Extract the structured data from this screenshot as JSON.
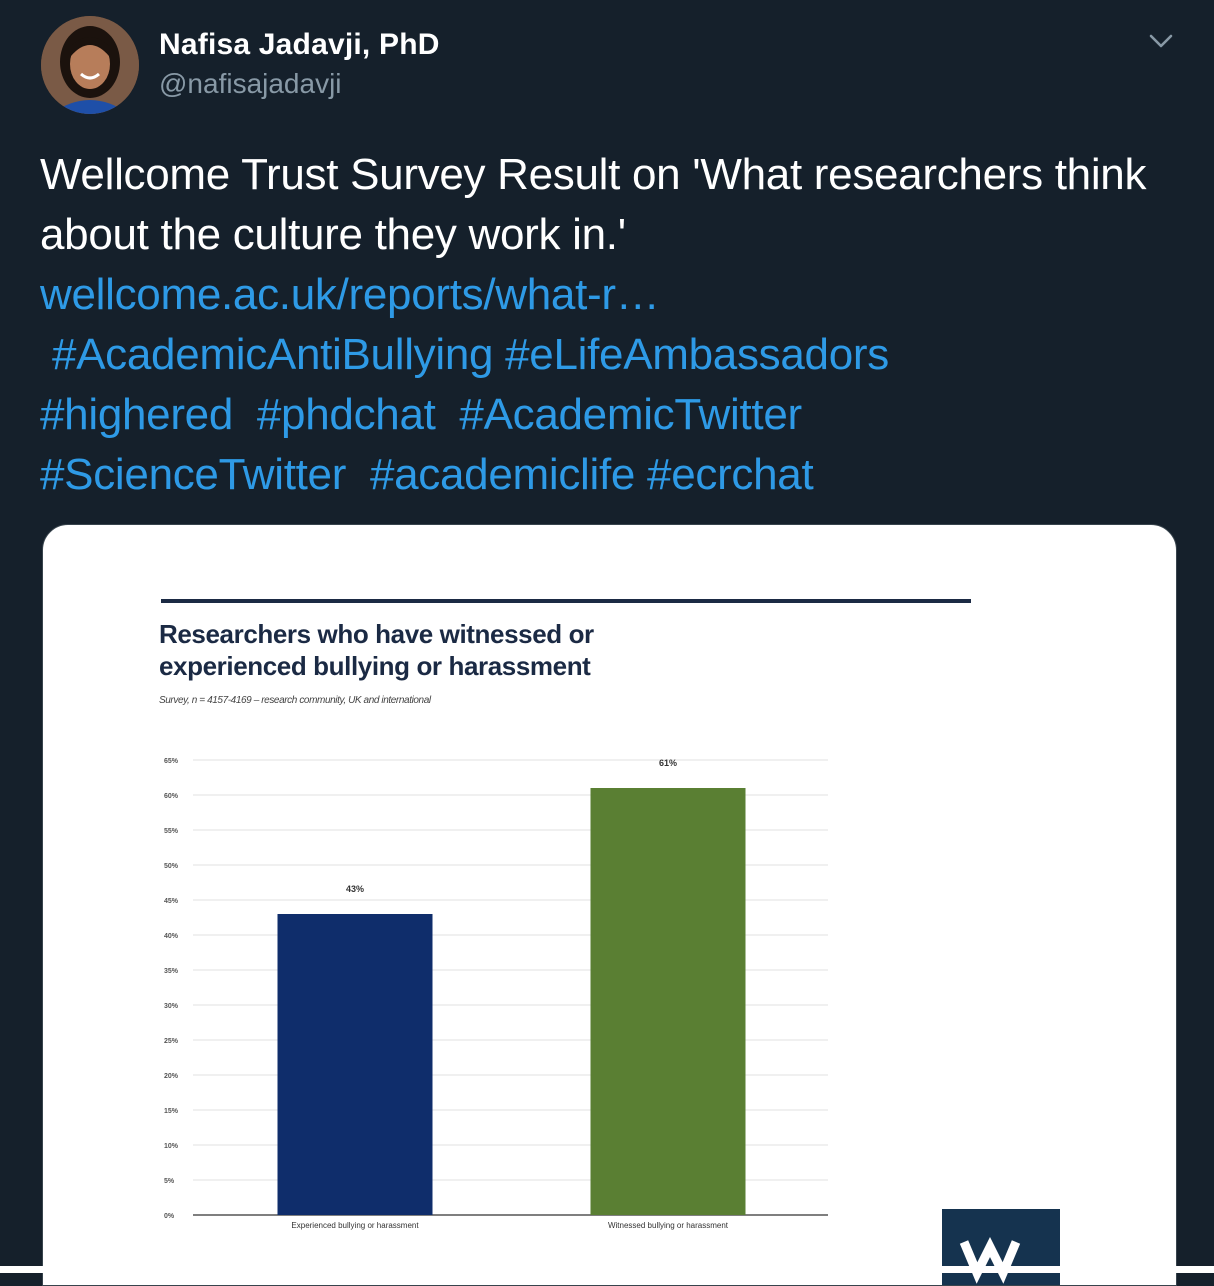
{
  "author": {
    "name": "Nafisa Jadavji, PhD",
    "handle": "@nafisajadavji"
  },
  "tweet": {
    "line1": "Wellcome Trust Survey Result on 'What researchers think",
    "line2": "about the culture they work in.'",
    "link": "wellcome.ac.uk/reports/what-r…",
    "hashtags_line1": [
      "#AcademicAntiBullying",
      "#eLifeAmbassadors"
    ],
    "hashtags_line2": [
      "#highered",
      "#phdchat",
      "#AcademicTwitter"
    ],
    "hashtags_line3": [
      "#ScienceTwitter",
      "#academiclife",
      "#ecrchat"
    ]
  },
  "icons": {
    "menu": "chevron-down-icon",
    "logo": "wellcome-w-logo"
  },
  "colors": {
    "background": "#15202b",
    "link": "#2e9ae6",
    "bar_experienced": "#0f2d6b",
    "bar_witnessed": "#5a7f33"
  },
  "chart_data": {
    "type": "bar",
    "title": "Researchers who have witnessed or experienced bullying or harassment",
    "subtitle": "Survey, n = 4157-4169 – research community, UK and international",
    "categories": [
      "Experienced bullying or harassment",
      "Witnessed bullying or harassment"
    ],
    "values": [
      43,
      61
    ],
    "data_labels": [
      "43%",
      "61%"
    ],
    "yticks": [
      0,
      5,
      10,
      15,
      20,
      25,
      30,
      35,
      40,
      45,
      50,
      55,
      60,
      65
    ],
    "ytick_labels": [
      "0%",
      "5%",
      "10%",
      "15%",
      "20%",
      "25%",
      "30%",
      "35%",
      "40%",
      "45%",
      "50%",
      "55%",
      "60%",
      "65%"
    ],
    "ylim": [
      0,
      65
    ],
    "grid": true,
    "xlabel": "",
    "ylabel": ""
  }
}
